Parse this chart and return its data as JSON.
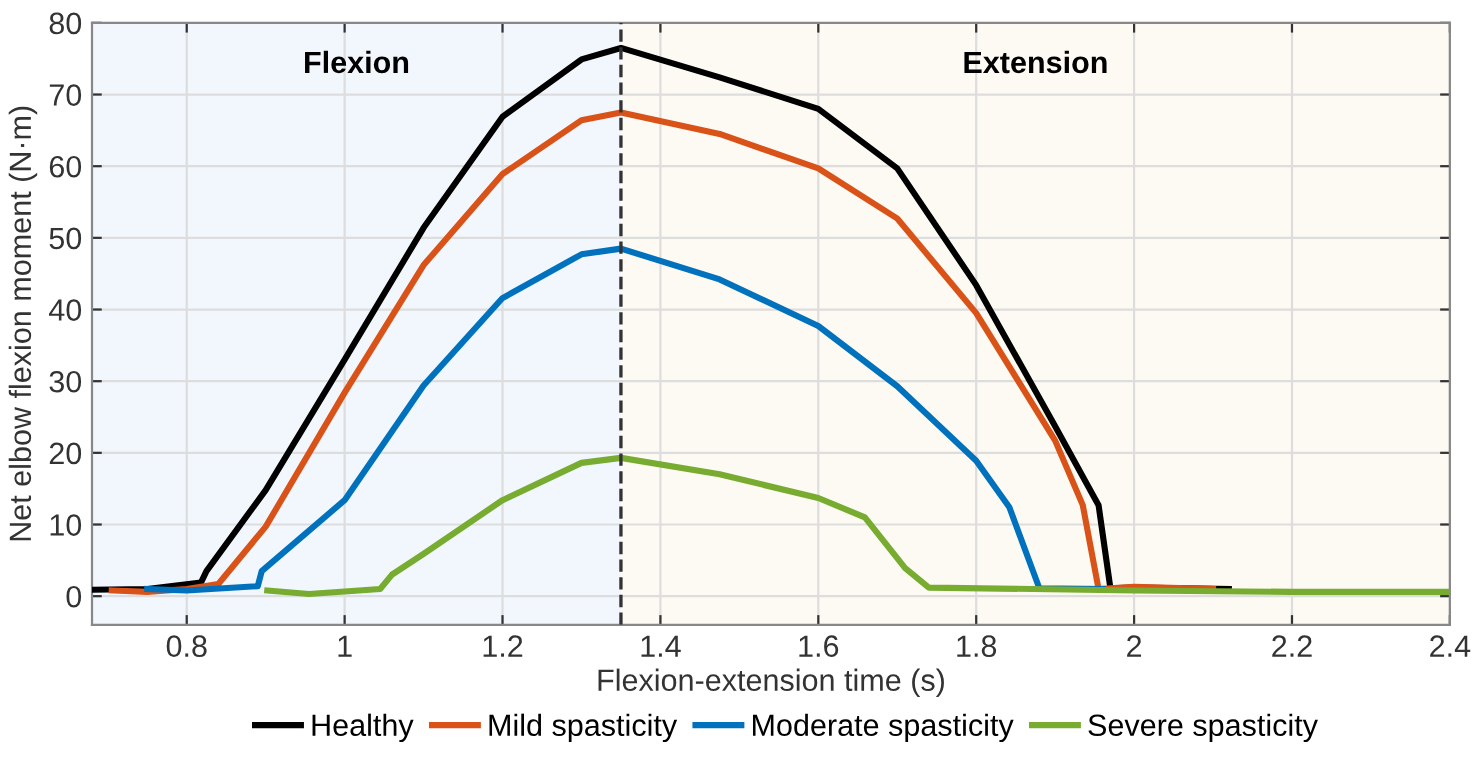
{
  "chart_data": {
    "type": "line",
    "xlabel": "Flexion-extension time (s)",
    "ylabel": "Net elbow flexion moment (N·m)",
    "xlim": [
      0.68,
      2.4
    ],
    "ylim": [
      -4,
      80
    ],
    "xticks": [
      0.8,
      {
        "value": 1.0,
        "label": "1"
      },
      1.2,
      1.4,
      1.6,
      1.8,
      {
        "value": 2.0,
        "label": "2"
      },
      2.2,
      2.4
    ],
    "yticks": [
      0,
      10,
      20,
      30,
      40,
      50,
      60,
      70,
      80
    ],
    "grid": true,
    "legend": "bottom",
    "line_style": "solid",
    "marker": "none",
    "series": [
      {
        "name": "Healthy",
        "color": "#000000",
        "x": [
          0.68,
          0.75,
          0.818,
          0.825,
          0.9,
          1.0,
          1.1,
          1.2,
          1.3,
          1.35,
          1.475,
          1.6,
          1.7,
          1.8,
          1.9,
          1.955,
          1.97,
          2.0,
          2.12
        ],
        "values": [
          0.9,
          1.0,
          1.9,
          3.5,
          14.8,
          33,
          51.4,
          66.9,
          74.9,
          76.5,
          72.4,
          68,
          59.7,
          43.4,
          23.7,
          12.7,
          1.1,
          1.2,
          1.0
        ]
      },
      {
        "name": "Mild spasticity",
        "color": "#d95319",
        "x": [
          0.705,
          0.75,
          0.8,
          0.84,
          0.9,
          1.0,
          1.1,
          1.2,
          1.3,
          1.35,
          1.475,
          1.6,
          1.7,
          1.8,
          1.9,
          1.935,
          1.955,
          2.0,
          2.1
        ],
        "values": [
          0.8,
          0.6,
          1.0,
          1.7,
          9.7,
          28.4,
          46.2,
          58.9,
          66.4,
          67.5,
          64.5,
          59.7,
          52.7,
          39.5,
          21.7,
          12.7,
          1.0,
          1.3,
          1.0
        ]
      },
      {
        "name": "Moderate spasticity",
        "color": "#0072bd",
        "x": [
          0.75,
          0.8,
          0.89,
          0.895,
          1.0,
          1.1,
          1.2,
          1.3,
          1.35,
          1.475,
          1.6,
          1.7,
          1.8,
          1.842,
          1.88,
          1.96
        ],
        "values": [
          1.0,
          0.8,
          1.4,
          3.5,
          13.4,
          29.4,
          41.6,
          47.7,
          48.5,
          44.2,
          37.7,
          29.3,
          18.9,
          12.4,
          1.1,
          1.0
        ]
      },
      {
        "name": "Severe spasticity",
        "color": "#77ac30",
        "x": [
          0.902,
          0.955,
          1.045,
          1.06,
          1.1,
          1.2,
          1.3,
          1.35,
          1.475,
          1.6,
          1.659,
          1.71,
          1.74,
          2.0,
          2.2,
          2.4
        ],
        "values": [
          0.8,
          0.3,
          1.0,
          3.0,
          5.9,
          13.4,
          18.6,
          19.3,
          17.0,
          13.7,
          11.0,
          3.9,
          1.2,
          0.8,
          0.6,
          0.6
        ]
      }
    ],
    "ref_lines": [
      {
        "axis": "x",
        "value": 1.35,
        "color": "#333333",
        "line_style": "dashed"
      }
    ],
    "bands": [
      {
        "axis": "x",
        "from": 0.68,
        "to": 1.35,
        "label": "Flexion",
        "color": "#f2f6fd"
      },
      {
        "axis": "x",
        "from": 1.35,
        "to": 2.4,
        "label": "Extension",
        "color": "#fdfaf3"
      }
    ]
  }
}
